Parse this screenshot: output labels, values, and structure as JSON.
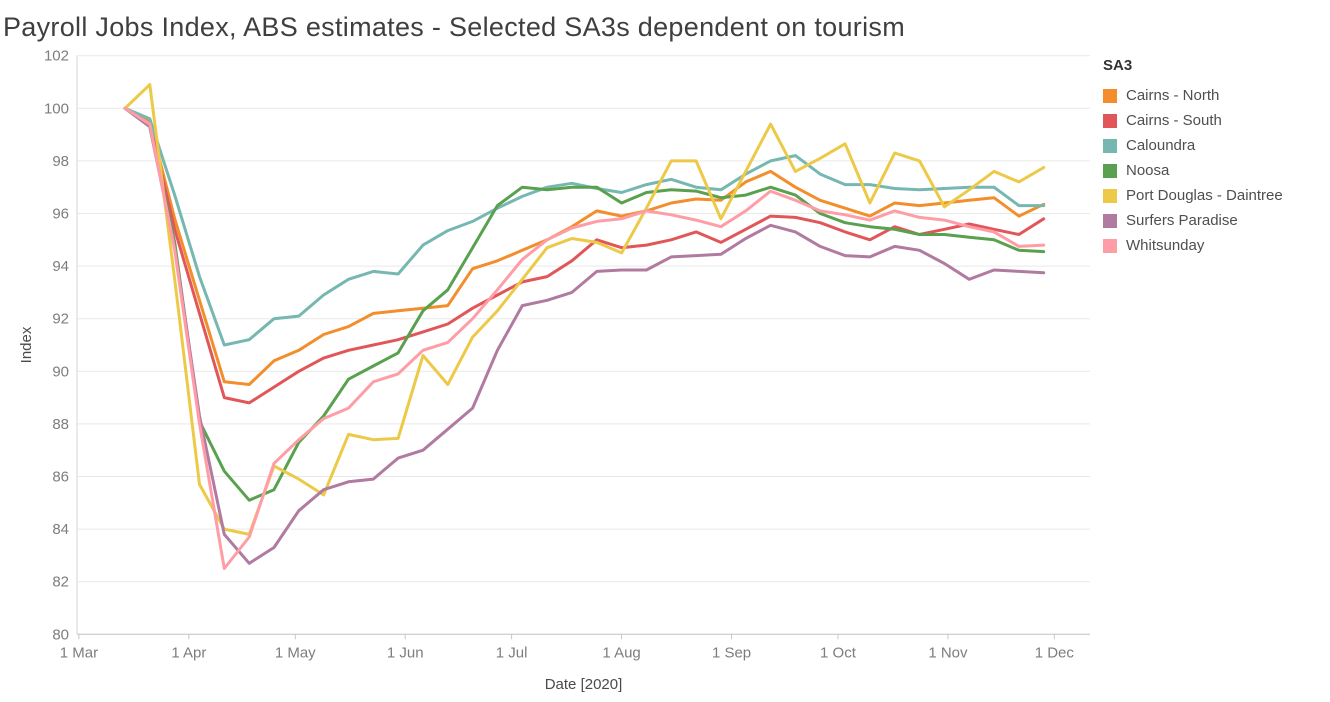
{
  "title": "Payroll Jobs Index, ABS estimates - Selected SA3s dependent on tourism",
  "legend": {
    "title": "SA3"
  },
  "colors": {
    "background": "#ffffff",
    "gridline": "#e9e9e9",
    "axis_line": "#c6c6c6",
    "tick_label": "#7d7d7d",
    "axis_title": "#4b4b4b",
    "title_text": "#3f3f3f"
  },
  "chart_data": {
    "type": "line",
    "title": "Payroll Jobs Index, ABS estimates - Selected SA3s dependent on tourism",
    "xlabel": "Date [2020]",
    "ylabel": "Index",
    "ylim": [
      80,
      102
    ],
    "grid": "horizontal",
    "legend_position": "right",
    "legend_title": "SA3",
    "y_ticks": [
      80,
      82,
      84,
      86,
      88,
      90,
      92,
      94,
      96,
      98,
      100,
      102
    ],
    "x_ticks": [
      {
        "label": "1 Mar",
        "day": 0
      },
      {
        "label": "1 Apr",
        "day": 31
      },
      {
        "label": "1 May",
        "day": 61
      },
      {
        "label": "1 Jun",
        "day": 92
      },
      {
        "label": "1 Jul",
        "day": 122
      },
      {
        "label": "1 Aug",
        "day": 153
      },
      {
        "label": "1 Sep",
        "day": 184
      },
      {
        "label": "1 Oct",
        "day": 214
      },
      {
        "label": "1 Nov",
        "day": 245
      },
      {
        "label": "1 Dec",
        "day": 275
      }
    ],
    "weeks_ending": [
      "14 Mar",
      "21 Mar",
      "28 Mar",
      "4 Apr",
      "11 Apr",
      "18 Apr",
      "25 Apr",
      "2 May",
      "9 May",
      "16 May",
      "23 May",
      "30 May",
      "6 Jun",
      "13 Jun",
      "20 Jun",
      "27 Jun",
      "4 Jul",
      "11 Jul",
      "18 Jul",
      "25 Jul",
      "1 Aug",
      "8 Aug",
      "15 Aug",
      "22 Aug",
      "29 Aug",
      "5 Sep",
      "12 Sep",
      "19 Sep",
      "26 Sep",
      "3 Oct",
      "10 Oct",
      "17 Oct",
      "24 Oct",
      "31 Oct",
      "7 Nov",
      "14 Nov",
      "21 Nov",
      "28 Nov"
    ],
    "week_days": [
      13,
      20,
      27,
      34,
      41,
      48,
      55,
      62,
      69,
      76,
      83,
      90,
      97,
      104,
      111,
      118,
      125,
      132,
      139,
      146,
      153,
      160,
      167,
      174,
      181,
      188,
      195,
      202,
      209,
      216,
      223,
      230,
      237,
      244,
      251,
      258,
      265,
      272
    ],
    "series": [
      {
        "name": "Cairns - North",
        "color": "#f28e2b",
        "values": [
          100,
          99.5,
          95.8,
          92.7,
          89.6,
          89.5,
          90.4,
          90.8,
          91.4,
          91.7,
          92.2,
          92.3,
          92.4,
          92.5,
          93.9,
          94.2,
          94.6,
          95.0,
          95.5,
          96.1,
          95.9,
          96.1,
          96.4,
          96.55,
          96.5,
          97.2,
          97.6,
          97.0,
          96.5,
          96.2,
          95.9,
          96.4,
          96.3,
          96.4,
          96.5,
          96.6,
          95.9,
          96.35
        ]
      },
      {
        "name": "Cairns - South",
        "color": "#e15759",
        "values": [
          100,
          99.4,
          95.4,
          92.2,
          89.0,
          88.8,
          89.4,
          90.0,
          90.5,
          90.8,
          91.0,
          91.2,
          91.5,
          91.8,
          92.4,
          92.9,
          93.4,
          93.6,
          94.2,
          95.0,
          94.7,
          94.8,
          95.0,
          95.3,
          94.9,
          95.4,
          95.9,
          95.85,
          95.65,
          95.3,
          95.0,
          95.5,
          95.2,
          95.4,
          95.6,
          95.4,
          95.2,
          95.8
        ]
      },
      {
        "name": "Caloundra",
        "color": "#76b7b2",
        "values": [
          100,
          99.6,
          96.7,
          93.6,
          91.0,
          91.2,
          92.0,
          92.1,
          92.9,
          93.5,
          93.8,
          93.7,
          94.8,
          95.35,
          95.7,
          96.2,
          96.65,
          97.0,
          97.15,
          96.95,
          96.8,
          97.1,
          97.3,
          97.0,
          96.9,
          97.5,
          98.0,
          98.2,
          97.5,
          97.1,
          97.1,
          96.95,
          96.9,
          96.95,
          97.0,
          97.0,
          96.3,
          96.3
        ]
      },
      {
        "name": "Noosa",
        "color": "#59a14f",
        "values": [
          100,
          99.3,
          94.9,
          88.1,
          86.2,
          85.1,
          85.5,
          87.3,
          88.3,
          89.7,
          90.2,
          90.7,
          92.3,
          93.1,
          94.7,
          96.3,
          97.0,
          96.9,
          97.0,
          97.0,
          96.4,
          96.8,
          96.9,
          96.85,
          96.6,
          96.7,
          97.0,
          96.7,
          96.0,
          95.65,
          95.5,
          95.4,
          95.2,
          95.2,
          95.1,
          95.0,
          94.6,
          94.55
        ]
      },
      {
        "name": "Port Douglas - Daintree",
        "color": "#edc948",
        "values": [
          100,
          100.9,
          93.5,
          85.7,
          84.0,
          83.8,
          86.4,
          85.9,
          85.3,
          87.6,
          87.4,
          87.45,
          90.6,
          89.5,
          91.3,
          92.3,
          93.5,
          94.7,
          95.05,
          94.9,
          94.5,
          96.2,
          98.0,
          98.0,
          95.8,
          97.6,
          99.4,
          97.6,
          98.1,
          98.65,
          96.4,
          98.3,
          98.0,
          96.25,
          96.9,
          97.6,
          97.2,
          97.75
        ]
      },
      {
        "name": "Surfers Paradise",
        "color": "#b07aa1",
        "values": [
          100,
          99.3,
          94.7,
          88.3,
          83.8,
          82.7,
          83.3,
          84.7,
          85.5,
          85.8,
          85.9,
          86.7,
          87.0,
          87.8,
          88.6,
          90.8,
          92.5,
          92.7,
          93.0,
          93.8,
          93.85,
          93.85,
          94.35,
          94.4,
          94.45,
          95.05,
          95.55,
          95.3,
          94.75,
          94.4,
          94.35,
          94.75,
          94.6,
          94.1,
          93.5,
          93.85,
          93.8,
          93.75
        ]
      },
      {
        "name": "Whitsunday",
        "color": "#ff9da7",
        "values": [
          100,
          99.4,
          94.6,
          88.0,
          82.5,
          83.7,
          86.5,
          87.4,
          88.2,
          88.6,
          89.6,
          89.9,
          90.8,
          91.1,
          92.0,
          93.1,
          94.25,
          95.0,
          95.45,
          95.7,
          95.8,
          96.1,
          95.95,
          95.75,
          95.5,
          96.1,
          96.85,
          96.5,
          96.1,
          95.95,
          95.75,
          96.1,
          95.85,
          95.75,
          95.5,
          95.3,
          94.75,
          94.8
        ]
      }
    ]
  }
}
